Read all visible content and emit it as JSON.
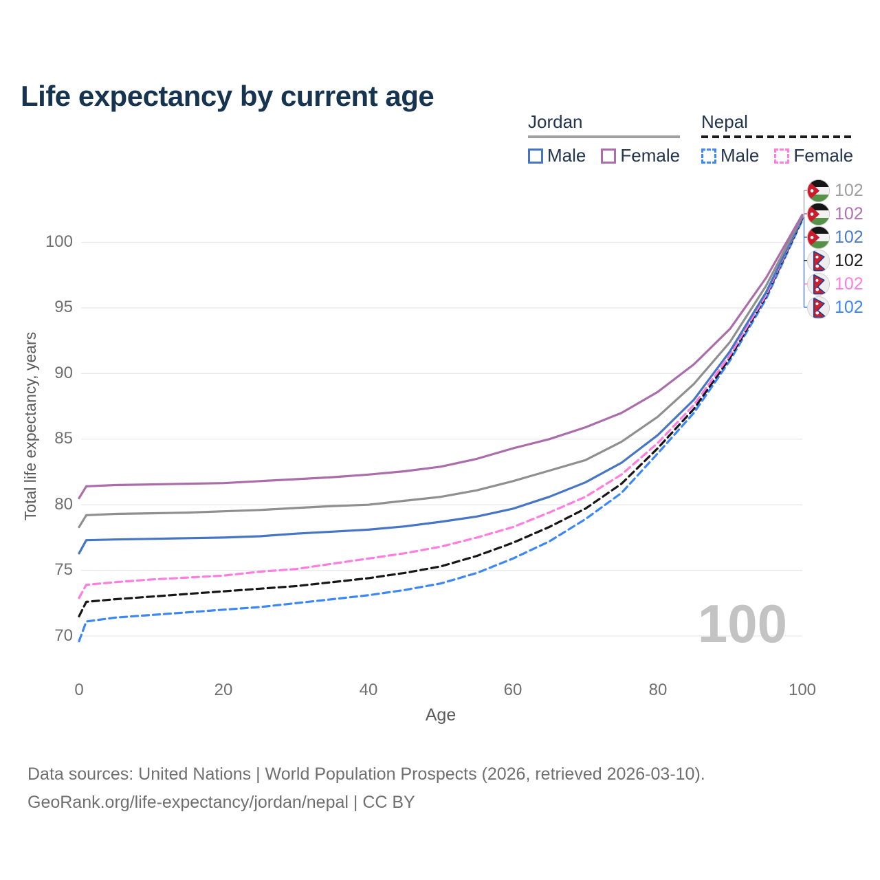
{
  "title": "Life expectancy by current age",
  "legend": {
    "groups": [
      {
        "label": "Jordan",
        "line_style": "solid",
        "underline_color": "#9e9e9e",
        "items": [
          {
            "label": "Male",
            "color": "#4575c4",
            "dash": false
          },
          {
            "label": "Female",
            "color": "#ad6dad",
            "dash": false
          }
        ]
      },
      {
        "label": "Nepal",
        "line_style": "dashed",
        "underline_color": "#1a1a1a",
        "items": [
          {
            "label": "Male",
            "color": "#3c87f8",
            "dash": true
          },
          {
            "label": "Female",
            "color": "#ff7ce1",
            "dash": true
          }
        ]
      }
    ]
  },
  "watermark": "100",
  "footer": {
    "line1": "Data sources: United Nations | World Population Prospects (2026, retrieved 2026-03-10).",
    "line2": "GeoRank.org/life-expectancy/jordan/nepal | CC BY"
  },
  "chart_data": {
    "type": "line",
    "title": "Life expectancy by current age",
    "xlabel": "Age",
    "ylabel": "Total life expectancy, years",
    "xlim": [
      0,
      100
    ],
    "ylim": [
      69,
      103
    ],
    "xticks": [
      0,
      20,
      40,
      60,
      80,
      100
    ],
    "yticks": [
      70,
      75,
      80,
      85,
      90,
      95,
      100
    ],
    "grid": "horizontal",
    "legend_position": "top-right",
    "series": [
      {
        "name": "Nepal Male",
        "country": "Nepal",
        "sex": "Male",
        "color": "#3c87f8",
        "dash": true,
        "x": [
          0,
          1,
          5,
          10,
          15,
          20,
          25,
          30,
          35,
          40,
          45,
          50,
          55,
          60,
          65,
          70,
          75,
          80,
          85,
          90,
          95,
          100
        ],
        "y": [
          69.6,
          71.1,
          71.4,
          71.6,
          71.8,
          72.0,
          72.2,
          72.5,
          72.8,
          73.1,
          73.5,
          74.0,
          74.8,
          75.9,
          77.2,
          78.9,
          80.9,
          83.9,
          87.0,
          91.0,
          95.7,
          101.7
        ]
      },
      {
        "name": "Nepal Total",
        "country": "Nepal",
        "sex": "Both",
        "color": "#161616",
        "dash": true,
        "x": [
          0,
          1,
          5,
          10,
          15,
          20,
          25,
          30,
          35,
          40,
          45,
          50,
          55,
          60,
          65,
          70,
          75,
          80,
          85,
          90,
          95,
          100
        ],
        "y": [
          71.5,
          72.6,
          72.8,
          73.0,
          73.2,
          73.4,
          73.6,
          73.8,
          74.1,
          74.4,
          74.8,
          75.3,
          76.1,
          77.1,
          78.3,
          79.7,
          81.6,
          84.3,
          87.3,
          91.2,
          95.9,
          101.8
        ]
      },
      {
        "name": "Nepal Female",
        "country": "Nepal",
        "sex": "Female",
        "color": "#ff7ce1",
        "dash": true,
        "x": [
          0,
          1,
          5,
          10,
          15,
          20,
          25,
          30,
          35,
          40,
          45,
          50,
          55,
          60,
          65,
          70,
          75,
          80,
          85,
          90,
          95,
          100
        ],
        "y": [
          72.9,
          73.9,
          74.1,
          74.3,
          74.45,
          74.6,
          74.9,
          75.1,
          75.5,
          75.9,
          76.3,
          76.8,
          77.5,
          78.3,
          79.4,
          80.6,
          82.3,
          84.7,
          87.6,
          91.4,
          96.0,
          101.9
        ]
      },
      {
        "name": "Jordan Male",
        "country": "Jordan",
        "sex": "Male",
        "color": "#4575c4",
        "dash": false,
        "x": [
          0,
          1,
          5,
          10,
          15,
          20,
          25,
          30,
          35,
          40,
          45,
          50,
          55,
          60,
          65,
          70,
          75,
          80,
          85,
          90,
          95,
          100
        ],
        "y": [
          76.3,
          77.3,
          77.35,
          77.4,
          77.45,
          77.5,
          77.6,
          77.8,
          77.95,
          78.1,
          78.35,
          78.7,
          79.1,
          79.7,
          80.6,
          81.7,
          83.2,
          85.3,
          88.0,
          91.7,
          96.2,
          101.9
        ]
      },
      {
        "name": "Jordan Total",
        "country": "Jordan",
        "sex": "Both",
        "color": "#8f8f8f",
        "dash": false,
        "x": [
          0,
          1,
          5,
          10,
          15,
          20,
          25,
          30,
          35,
          40,
          45,
          50,
          55,
          60,
          65,
          70,
          75,
          80,
          85,
          90,
          95,
          100
        ],
        "y": [
          78.3,
          79.2,
          79.3,
          79.35,
          79.4,
          79.5,
          79.6,
          79.75,
          79.9,
          80.0,
          80.3,
          80.6,
          81.1,
          81.8,
          82.6,
          83.4,
          84.8,
          86.7,
          89.2,
          92.4,
          96.7,
          102.0
        ]
      },
      {
        "name": "Jordan Female",
        "country": "Jordan",
        "sex": "Female",
        "color": "#ab6cab",
        "dash": false,
        "x": [
          0,
          1,
          5,
          10,
          15,
          20,
          25,
          30,
          35,
          40,
          45,
          50,
          55,
          60,
          65,
          70,
          75,
          80,
          85,
          90,
          95,
          100
        ],
        "y": [
          80.5,
          81.4,
          81.5,
          81.55,
          81.6,
          81.65,
          81.8,
          81.95,
          82.1,
          82.3,
          82.55,
          82.9,
          83.5,
          84.3,
          85.0,
          85.9,
          87.0,
          88.6,
          90.7,
          93.4,
          97.3,
          102.1
        ]
      }
    ],
    "end_labels": [
      {
        "country": "Jordan",
        "series": "Total",
        "value": "102",
        "color": "#9e9e9e"
      },
      {
        "country": "Jordan",
        "series": "Female",
        "value": "102",
        "color": "#b06fb0"
      },
      {
        "country": "Jordan",
        "series": "Male",
        "value": "102",
        "color": "#4b7bc8"
      },
      {
        "country": "Nepal",
        "series": "Total",
        "value": "102",
        "color": "#1a1a1a"
      },
      {
        "country": "Nepal",
        "series": "Female",
        "value": "102",
        "color": "#ff7ce0"
      },
      {
        "country": "Nepal",
        "series": "Male",
        "value": "102",
        "color": "#3b87f7"
      }
    ]
  }
}
